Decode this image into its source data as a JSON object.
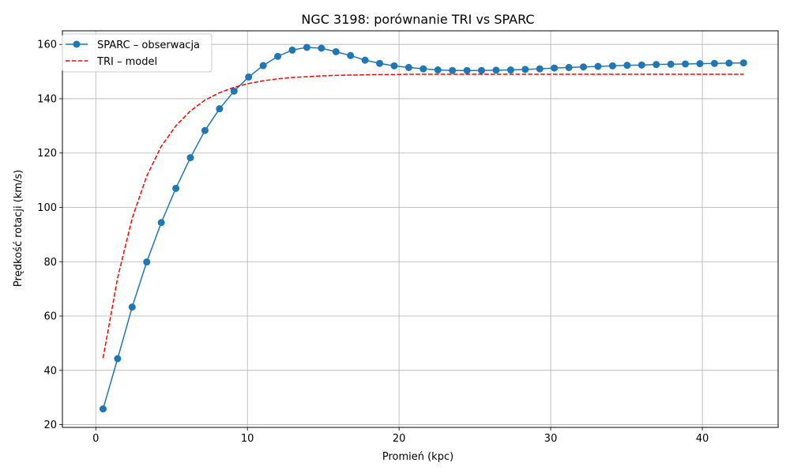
{
  "chart_data": {
    "type": "line",
    "title": "NGC 3198: porównanie TRI vs SPARC",
    "xlabel": "Promień (kpc)",
    "ylabel": "Prędkość rotacji (km/s)",
    "xlim": [
      -2.2,
      45
    ],
    "ylim": [
      19,
      165
    ],
    "xticks": [
      0,
      10,
      20,
      30,
      40
    ],
    "yticks": [
      20,
      40,
      60,
      80,
      100,
      120,
      140,
      160
    ],
    "grid": true,
    "legend_position": "upper-left",
    "x": [
      0.48,
      1.44,
      2.4,
      3.36,
      4.32,
      5.28,
      6.24,
      7.2,
      8.16,
      9.12,
      10.08,
      11.04,
      12.0,
      12.96,
      13.92,
      14.88,
      15.84,
      16.8,
      17.76,
      18.72,
      19.68,
      20.64,
      21.6,
      22.56,
      23.52,
      24.48,
      25.44,
      26.4,
      27.36,
      28.32,
      29.28,
      30.24,
      31.2,
      32.16,
      33.12,
      34.08,
      35.04,
      36.0,
      36.96,
      37.92,
      38.88,
      39.84,
      40.8,
      41.76,
      42.72
    ],
    "series": [
      {
        "name": "SPARC – obserwacja",
        "color": "#1f77b4",
        "style": "solid-markers",
        "values": [
          25.8,
          44.3,
          63.3,
          79.9,
          94.4,
          107.0,
          118.3,
          128.3,
          136.3,
          142.8,
          148.0,
          152.2,
          155.6,
          157.9,
          158.9,
          158.6,
          157.3,
          155.9,
          154.2,
          153.0,
          152.1,
          151.5,
          151.0,
          150.6,
          150.4,
          150.4,
          150.4,
          150.5,
          150.6,
          150.8,
          151.0,
          151.3,
          151.5,
          151.7,
          151.9,
          152.1,
          152.3,
          152.4,
          152.6,
          152.7,
          152.8,
          152.9,
          153.0,
          153.1,
          153.2
        ]
      },
      {
        "name": "TRI – model",
        "color": "#ff0000",
        "style": "dashed",
        "values": [
          44.5,
          74.0,
          96.0,
          111.5,
          122.5,
          130.0,
          135.5,
          139.5,
          142.2,
          144.2,
          145.6,
          146.6,
          147.3,
          147.8,
          148.1,
          148.4,
          148.6,
          148.7,
          148.8,
          148.9,
          148.9,
          149.0,
          149.0,
          149.0,
          149.0,
          149.0,
          149.0,
          149.0,
          149.0,
          149.0,
          149.0,
          149.0,
          149.0,
          149.0,
          149.0,
          149.0,
          149.0,
          149.0,
          149.0,
          149.0,
          149.0,
          149.0,
          149.0,
          149.0,
          149.0
        ]
      }
    ]
  }
}
